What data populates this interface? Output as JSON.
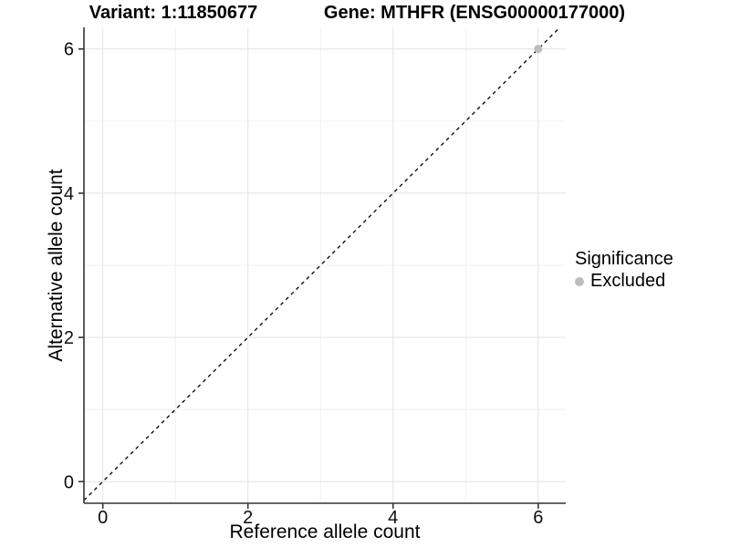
{
  "titles": {
    "left": "Variant: 1:11850677",
    "right": "Gene: MTHFR (ENSG00000177000)"
  },
  "legend": {
    "title": "Significance",
    "items": [
      {
        "label": "Excluded",
        "color": "#bdbdbd"
      }
    ]
  },
  "colors": {
    "background": "#ffffff",
    "grid_major": "#e3e3e3",
    "grid_minor": "#f0f0f0",
    "axis": "#333333",
    "text": "#0d0d0d",
    "point": "#bdbdbd",
    "reference_line": "#000000"
  },
  "chart_data": {
    "type": "scatter",
    "title_left": "Variant: 1:11850677",
    "title_right": "Gene: MTHFR (ENSG00000177000)",
    "xlabel": "Reference allele count",
    "ylabel": "Alternative allele count",
    "xlim": [
      -0.26,
      6.38
    ],
    "ylim": [
      -0.3,
      6.3
    ],
    "x_major_ticks": [
      0,
      2,
      4,
      6
    ],
    "y_major_ticks": [
      0,
      2,
      4,
      6
    ],
    "x_minor_gridlines": [
      1,
      3,
      5
    ],
    "y_minor_gridlines": [
      1,
      3,
      5
    ],
    "grid": true,
    "legend_title": "Significance",
    "legend_position": "right",
    "series": [
      {
        "name": "Excluded",
        "color": "#bdbdbd",
        "marker": "circle",
        "points": [
          {
            "x": 6,
            "y": 6
          }
        ]
      }
    ],
    "reference_line": {
      "type": "identity",
      "slope": 1,
      "intercept": 0,
      "style": "dashed",
      "color": "#000000"
    }
  }
}
